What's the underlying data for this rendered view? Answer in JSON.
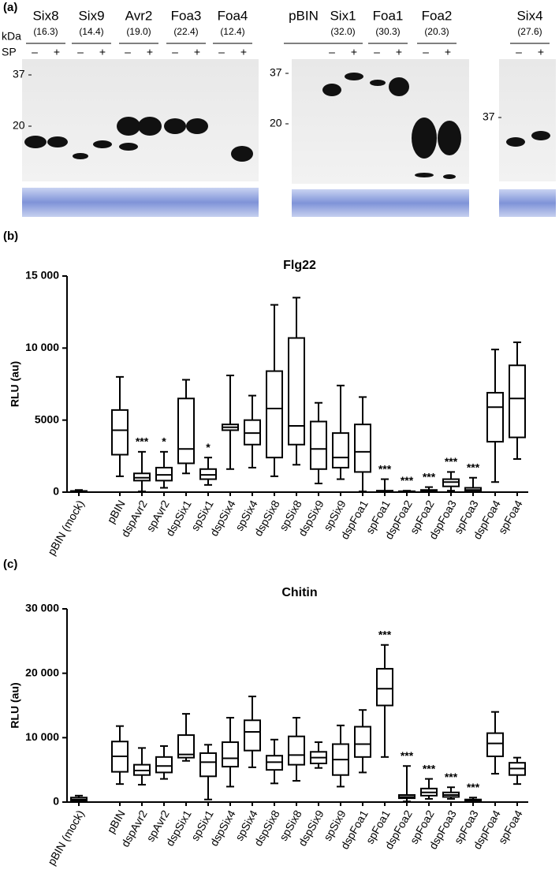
{
  "panel_a": {
    "label": "(a)",
    "kda": "kDa",
    "sp": "SP",
    "minus": "–",
    "plus": "+",
    "blots": [
      {
        "markers": [
          "37",
          "20"
        ],
        "lanes": [
          {
            "name": "Six8",
            "mw": "(16.3)"
          },
          {
            "name": "Six9",
            "mw": "(14.4)"
          },
          {
            "name": "Avr2",
            "mw": "(19.0)"
          },
          {
            "name": "Foa3",
            "mw": "(22.4)"
          },
          {
            "name": "Foa4",
            "mw": "(12.4)"
          }
        ]
      },
      {
        "markers": [
          "37",
          "20"
        ],
        "lanes": [
          {
            "name": "pBIN"
          },
          {
            "name": "Six1",
            "mw": "(32.0)"
          },
          {
            "name": "Foa1",
            "mw": "(30.3)"
          },
          {
            "name": "Foa2",
            "mw": "(20.3)"
          }
        ]
      },
      {
        "markers": [
          "37"
        ],
        "lanes": [
          {
            "name": "Six4",
            "mw": "(27.6)"
          }
        ]
      }
    ]
  },
  "chart_data": [
    {
      "type": "box",
      "panel_label": "(b)",
      "title": "Flg22",
      "ylabel": "RLU (au)",
      "color": "#000000",
      "categories": [
        "pBIN (mock)",
        "pBIN",
        "dspAvr2",
        "spAvr2",
        "dspSix1",
        "spSix1",
        "dspSix4",
        "spSix4",
        "dspSix8",
        "spSix8",
        "dspSix9",
        "spSix9",
        "dspFoa1",
        "spFoa1",
        "dspFoa2",
        "spFoa2",
        "dspFoa3",
        "spFoa3",
        "dspFoa4",
        "spFoa4"
      ],
      "min": [
        0,
        1100,
        50,
        300,
        1300,
        500,
        1600,
        1700,
        1100,
        1900,
        600,
        900,
        50,
        0,
        0,
        0,
        100,
        0,
        700,
        2300
      ],
      "q1": [
        20,
        2600,
        800,
        800,
        2000,
        900,
        4300,
        3300,
        2400,
        3300,
        1600,
        1700,
        1400,
        20,
        10,
        20,
        400,
        50,
        3500,
        3800
      ],
      "median": [
        50,
        4300,
        1000,
        1200,
        3000,
        1200,
        4500,
        4100,
        5800,
        4600,
        3000,
        2400,
        2800,
        50,
        30,
        60,
        700,
        150,
        5900,
        6500
      ],
      "q3": [
        80,
        5700,
        1300,
        1700,
        6500,
        1600,
        4700,
        5000,
        8400,
        10700,
        4900,
        4100,
        4700,
        100,
        60,
        150,
        900,
        300,
        6900,
        8800
      ],
      "max": [
        150,
        8000,
        2800,
        2800,
        7800,
        2400,
        8100,
        6700,
        13000,
        13500,
        6200,
        7400,
        6600,
        900,
        100,
        350,
        1400,
        1000,
        9900,
        10400
      ],
      "annotations": [
        null,
        null,
        "***",
        "*",
        null,
        "*",
        null,
        null,
        null,
        null,
        null,
        null,
        null,
        "***",
        "***",
        "***",
        "***",
        "***",
        null,
        null
      ],
      "ylim": [
        0,
        15000
      ],
      "yticks": [
        0,
        5000,
        {
          "value": 10000,
          "label": "10 000"
        },
        {
          "value": 15000,
          "label": "15 000"
        }
      ]
    },
    {
      "type": "box",
      "panel_label": "(c)",
      "title": "Chitin",
      "ylabel": "RLU (au)",
      "color": "#000000",
      "categories": [
        "pBIN (mock)",
        "pBIN",
        "dspAvr2",
        "spAvr2",
        "dspSix1",
        "spSix1",
        "dspSix4",
        "spSix4",
        "dspSix8",
        "spSix8",
        "dspSix9",
        "spSix9",
        "dspFoa1",
        "spFoa1",
        "dspFoa2",
        "spFoa2",
        "dspFoa3",
        "spFoa3",
        "dspFoa4",
        "spFoa4"
      ],
      "min": [
        0,
        2800,
        2700,
        3600,
        6400,
        400,
        2400,
        5400,
        2900,
        3300,
        5300,
        2400,
        4600,
        7000,
        100,
        500,
        500,
        0,
        4400,
        2800
      ],
      "q1": [
        200,
        4700,
        4200,
        4600,
        6900,
        4000,
        5500,
        8000,
        5000,
        5800,
        6000,
        4200,
        7000,
        15000,
        600,
        1000,
        800,
        100,
        7100,
        4200
      ],
      "median": [
        400,
        7100,
        4900,
        5600,
        7400,
        6200,
        6800,
        10900,
        6200,
        7300,
        6900,
        6600,
        9000,
        17600,
        800,
        1500,
        1100,
        200,
        9100,
        5200
      ],
      "q3": [
        700,
        9400,
        5800,
        7000,
        10400,
        7600,
        9300,
        12700,
        7200,
        10200,
        7800,
        9000,
        11700,
        20700,
        1100,
        2100,
        1500,
        400,
        10700,
        6100
      ],
      "max": [
        1000,
        11800,
        8400,
        8700,
        13700,
        8900,
        13100,
        16400,
        9700,
        13100,
        9300,
        11900,
        14300,
        24400,
        5600,
        3600,
        2300,
        700,
        14000,
        6900
      ],
      "annotations": [
        null,
        null,
        null,
        null,
        null,
        null,
        null,
        null,
        null,
        null,
        null,
        null,
        null,
        "***",
        "***",
        "***",
        "***",
        "***",
        null,
        null
      ],
      "ylim": [
        0,
        30000
      ],
      "yticks": [
        0,
        {
          "value": 10000,
          "label": "10 000"
        },
        {
          "value": 20000,
          "label": "20 000"
        },
        {
          "value": 30000,
          "label": "30 000"
        }
      ]
    }
  ]
}
